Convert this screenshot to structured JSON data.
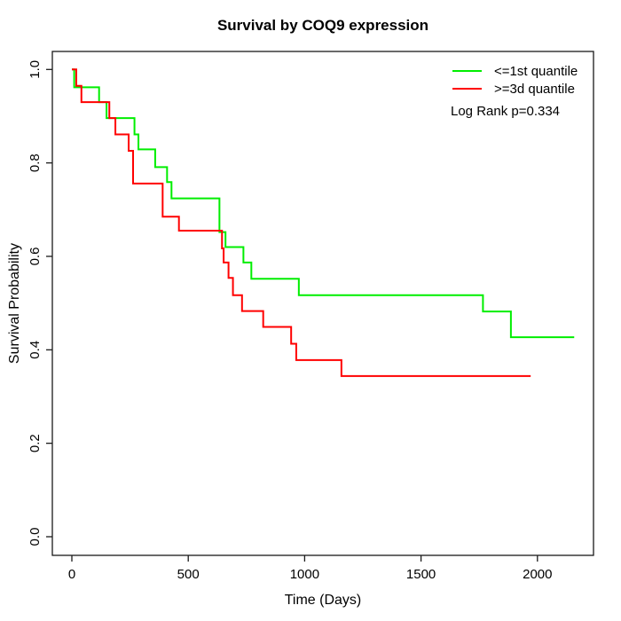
{
  "chart_data": {
    "type": "line",
    "subtype": "kaplan-meier-step",
    "title": "Survival by COQ9 expression",
    "xlabel": "Time (Days)",
    "ylabel": "Survival Probability",
    "xlim": [
      0,
      2240
    ],
    "ylim": [
      0.0,
      1.0
    ],
    "grid": false,
    "x_ticks": [
      0,
      500,
      1000,
      1500,
      2000
    ],
    "x_tick_labels": [
      "0",
      "500",
      "1000",
      "1500",
      "2000"
    ],
    "y_ticks": [
      0.0,
      0.2,
      0.4,
      0.6,
      0.8,
      1.0
    ],
    "y_tick_labels": [
      "0.0",
      "0.2",
      "0.4",
      "0.6",
      "0.8",
      "1.0"
    ],
    "legend": {
      "position": "top-right",
      "entries": [
        {
          "label": "<=1st quantile",
          "color": "#00ee00"
        },
        {
          "label": ">=3d quantile",
          "color": "#ff0000"
        }
      ]
    },
    "annotation": "Log Rank p=0.334",
    "series": [
      {
        "name": "<=1st quantile",
        "color": "#00ee00",
        "start": {
          "t": 0,
          "s": 1.0
        },
        "steps": [
          [
            10,
            0.962
          ],
          [
            117,
            0.93
          ],
          [
            149,
            0.896
          ],
          [
            269,
            0.861
          ],
          [
            286,
            0.829
          ],
          [
            358,
            0.791
          ],
          [
            409,
            0.759
          ],
          [
            428,
            0.724
          ],
          [
            634,
            0.652
          ],
          [
            660,
            0.62
          ],
          [
            737,
            0.587
          ],
          [
            771,
            0.552
          ],
          [
            975,
            0.517
          ],
          [
            1766,
            0.482
          ],
          [
            1886,
            0.427
          ]
        ],
        "end_t": 2158,
        "final_s": 0.427
      },
      {
        "name": ">=3d quantile",
        "color": "#ff0000",
        "start": {
          "t": 0,
          "s": 1.0
        },
        "steps": [
          [
            19,
            0.965
          ],
          [
            41,
            0.93
          ],
          [
            161,
            0.896
          ],
          [
            187,
            0.861
          ],
          [
            244,
            0.826
          ],
          [
            263,
            0.756
          ],
          [
            390,
            0.685
          ],
          [
            460,
            0.655
          ],
          [
            645,
            0.617
          ],
          [
            652,
            0.587
          ],
          [
            673,
            0.554
          ],
          [
            692,
            0.517
          ],
          [
            731,
            0.483
          ],
          [
            822,
            0.449
          ],
          [
            942,
            0.413
          ],
          [
            964,
            0.378
          ],
          [
            1158,
            0.344
          ]
        ],
        "end_t": 1971,
        "final_s": 0.344
      }
    ]
  }
}
